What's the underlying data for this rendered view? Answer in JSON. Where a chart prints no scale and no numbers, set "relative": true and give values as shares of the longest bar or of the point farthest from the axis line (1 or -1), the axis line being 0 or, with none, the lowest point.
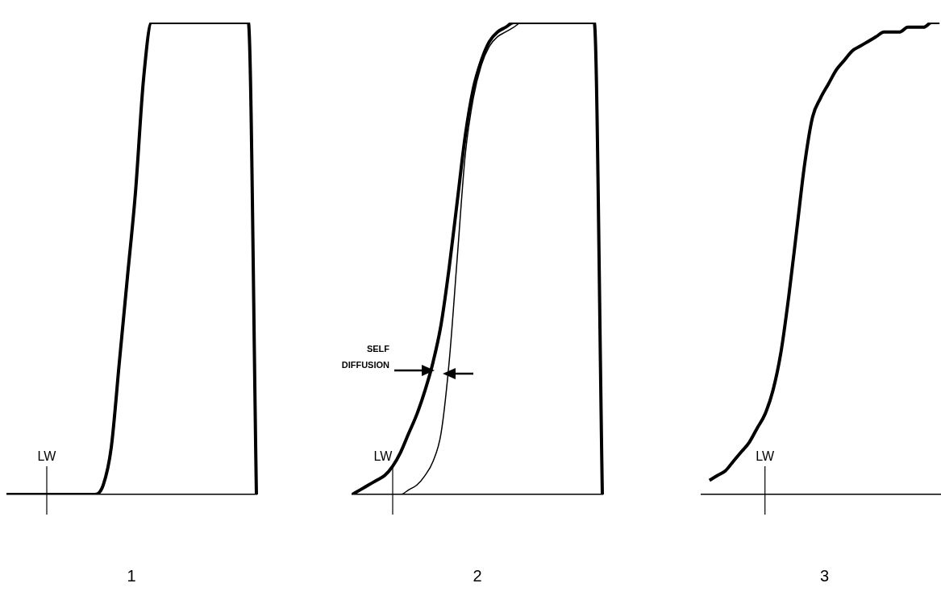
{
  "chart_data": [
    {
      "type": "line",
      "title": "1",
      "relative": true,
      "legend": false,
      "grid": false,
      "marker": "none",
      "annotations": [
        "LW"
      ],
      "categories": [
        null,
        null,
        null,
        null,
        null,
        null,
        null,
        null,
        null,
        null,
        null,
        null,
        null,
        null,
        null,
        null,
        null,
        null,
        null,
        null,
        null,
        null,
        null,
        null,
        null,
        null,
        null,
        null,
        null,
        null,
        null,
        null
      ],
      "series": [
        {
          "color": "#000000",
          "values": [
            0,
            0,
            0,
            0,
            0,
            0,
            0,
            0,
            0,
            0,
            0,
            0,
            0.02,
            0.1,
            0.28,
            0.46,
            0.64,
            0.88,
            1,
            1,
            1,
            1,
            1,
            1,
            1,
            1,
            1,
            1,
            1,
            1,
            1,
            0
          ]
        }
      ]
    },
    {
      "type": "line",
      "title": "2",
      "relative": true,
      "legend": false,
      "grid": false,
      "marker": "none",
      "annotations": [
        "LW",
        "SELF DIFFUSION"
      ],
      "categories": [
        null,
        null,
        null,
        null,
        null,
        null,
        null,
        null,
        null,
        null,
        null,
        null,
        null,
        null,
        null,
        null,
        null,
        null,
        null,
        null,
        null,
        null,
        null,
        null,
        null,
        null,
        null,
        null,
        null,
        null,
        null,
        null
      ],
      "series": [
        {
          "color": "#000000",
          "values": [
            0,
            0.01,
            0.02,
            0.03,
            0.04,
            0.06,
            0.09,
            0.13,
            0.17,
            0.22,
            0.28,
            0.36,
            0.48,
            0.62,
            0.76,
            0.86,
            0.92,
            0.96,
            0.98,
            0.99,
            1,
            1,
            1,
            1,
            1,
            1,
            1,
            1,
            1,
            1,
            1,
            0
          ]
        },
        {
          "color": "#000000",
          "values": [
            0,
            0,
            0,
            0,
            0,
            0,
            0,
            0.01,
            0.02,
            0.04,
            0.07,
            0.13,
            0.28,
            0.5,
            0.72,
            0.84,
            0.91,
            0.95,
            0.97,
            0.98,
            0.99,
            1,
            1,
            1,
            1,
            1,
            1,
            1,
            1,
            1,
            1,
            0
          ]
        }
      ]
    },
    {
      "type": "line",
      "title": "3",
      "relative": true,
      "legend": false,
      "grid": false,
      "marker": "none",
      "annotations": [
        "LW"
      ],
      "categories": [
        null,
        null,
        null,
        null,
        null,
        null,
        null,
        null,
        null,
        null,
        null,
        null,
        null,
        null,
        null,
        null,
        null,
        null,
        null,
        null,
        null,
        null,
        null,
        null,
        null,
        null,
        null,
        null,
        null,
        null,
        null,
        null
      ],
      "series": [
        {
          "color": "#000000",
          "values": [
            null,
            0.03,
            0.04,
            0.05,
            0.07,
            0.09,
            0.11,
            0.14,
            0.17,
            0.22,
            0.3,
            0.42,
            0.56,
            0.7,
            0.8,
            0.84,
            0.87,
            0.9,
            0.92,
            0.94,
            0.95,
            0.96,
            0.97,
            0.98,
            0.98,
            0.98,
            0.99,
            0.99,
            0.99,
            1,
            1,
            null
          ]
        }
      ]
    }
  ]
}
